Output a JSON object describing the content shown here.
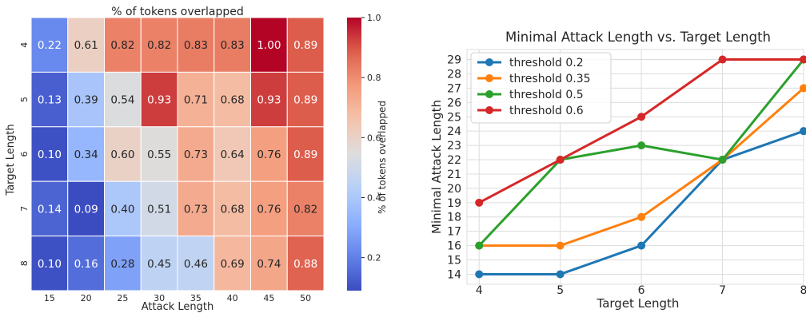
{
  "chart_data": [
    {
      "type": "heatmap",
      "title": "% of tokens overlapped",
      "xlabel": "Attack Length",
      "ylabel": "Target Length",
      "x_categories": [
        "15",
        "20",
        "25",
        "30",
        "35",
        "40",
        "45",
        "50"
      ],
      "y_categories": [
        "4",
        "5",
        "6",
        "7",
        "8"
      ],
      "values": [
        [
          0.22,
          0.61,
          0.82,
          0.82,
          0.83,
          0.83,
          1.0,
          0.89
        ],
        [
          0.13,
          0.39,
          0.54,
          0.93,
          0.71,
          0.68,
          0.93,
          0.89
        ],
        [
          0.1,
          0.34,
          0.6,
          0.55,
          0.73,
          0.64,
          0.76,
          0.89
        ],
        [
          0.14,
          0.09,
          0.4,
          0.51,
          0.73,
          0.68,
          0.76,
          0.82
        ],
        [
          0.1,
          0.16,
          0.28,
          0.45,
          0.46,
          0.69,
          0.74,
          0.88
        ]
      ],
      "value_labels": [
        [
          "0.22",
          "0.61",
          "0.82",
          "0.82",
          "0.83",
          "0.83",
          "1.00",
          "0.89"
        ],
        [
          "0.13",
          "0.39",
          "0.54",
          "0.93",
          "0.71",
          "0.68",
          "0.93",
          "0.89"
        ],
        [
          "0.10",
          "0.34",
          "0.60",
          "0.55",
          "0.73",
          "0.64",
          "0.76",
          "0.89"
        ],
        [
          "0.14",
          "0.09",
          "0.40",
          "0.51",
          "0.73",
          "0.68",
          "0.76",
          "0.82"
        ],
        [
          "0.10",
          "0.16",
          "0.28",
          "0.45",
          "0.46",
          "0.69",
          "0.74",
          "0.88"
        ]
      ],
      "colorbar": {
        "label": "% of tokens overlapped",
        "range": [
          0.09,
          1.0
        ],
        "ticks": [
          0.2,
          0.4,
          0.6,
          0.8,
          1.0
        ],
        "tick_labels": [
          "0.2",
          "0.4",
          "0.6",
          "0.8",
          "1.0"
        ],
        "colormap": "coolwarm"
      },
      "colors": {
        "low": "#3b4cc0",
        "mid": "#dddddd",
        "high": "#b40426"
      }
    },
    {
      "type": "line",
      "title": "Minimal Attack Length vs. Target Length",
      "xlabel": "Target Length",
      "ylabel": "Minimal Attack Length",
      "x": [
        4,
        5,
        6,
        7,
        8
      ],
      "x_tick_labels": [
        "4",
        "5",
        "6",
        "7",
        "8"
      ],
      "ylim": [
        13.3,
        29.7
      ],
      "y_ticks": [
        14,
        15,
        16,
        17,
        18,
        19,
        20,
        21,
        22,
        23,
        24,
        25,
        26,
        27,
        28,
        29
      ],
      "y_tick_labels": [
        "14",
        "15",
        "16",
        "17",
        "18",
        "19",
        "20",
        "21",
        "22",
        "23",
        "24",
        "25",
        "26",
        "27",
        "28",
        "29"
      ],
      "grid": true,
      "legend": "top-left",
      "series": [
        {
          "name": "threshold 0.2",
          "color": "#1f77b4",
          "values": [
            14,
            14,
            16,
            22,
            24
          ]
        },
        {
          "name": "threshold 0.35",
          "color": "#ff7f0e",
          "values": [
            16,
            16,
            18,
            22,
            27
          ]
        },
        {
          "name": "threshold 0.5",
          "color": "#2ca02c",
          "values": [
            16,
            22,
            23,
            22,
            29
          ]
        },
        {
          "name": "threshold 0.6",
          "color": "#d62728",
          "values": [
            19,
            22,
            25,
            29,
            29
          ]
        }
      ]
    }
  ]
}
